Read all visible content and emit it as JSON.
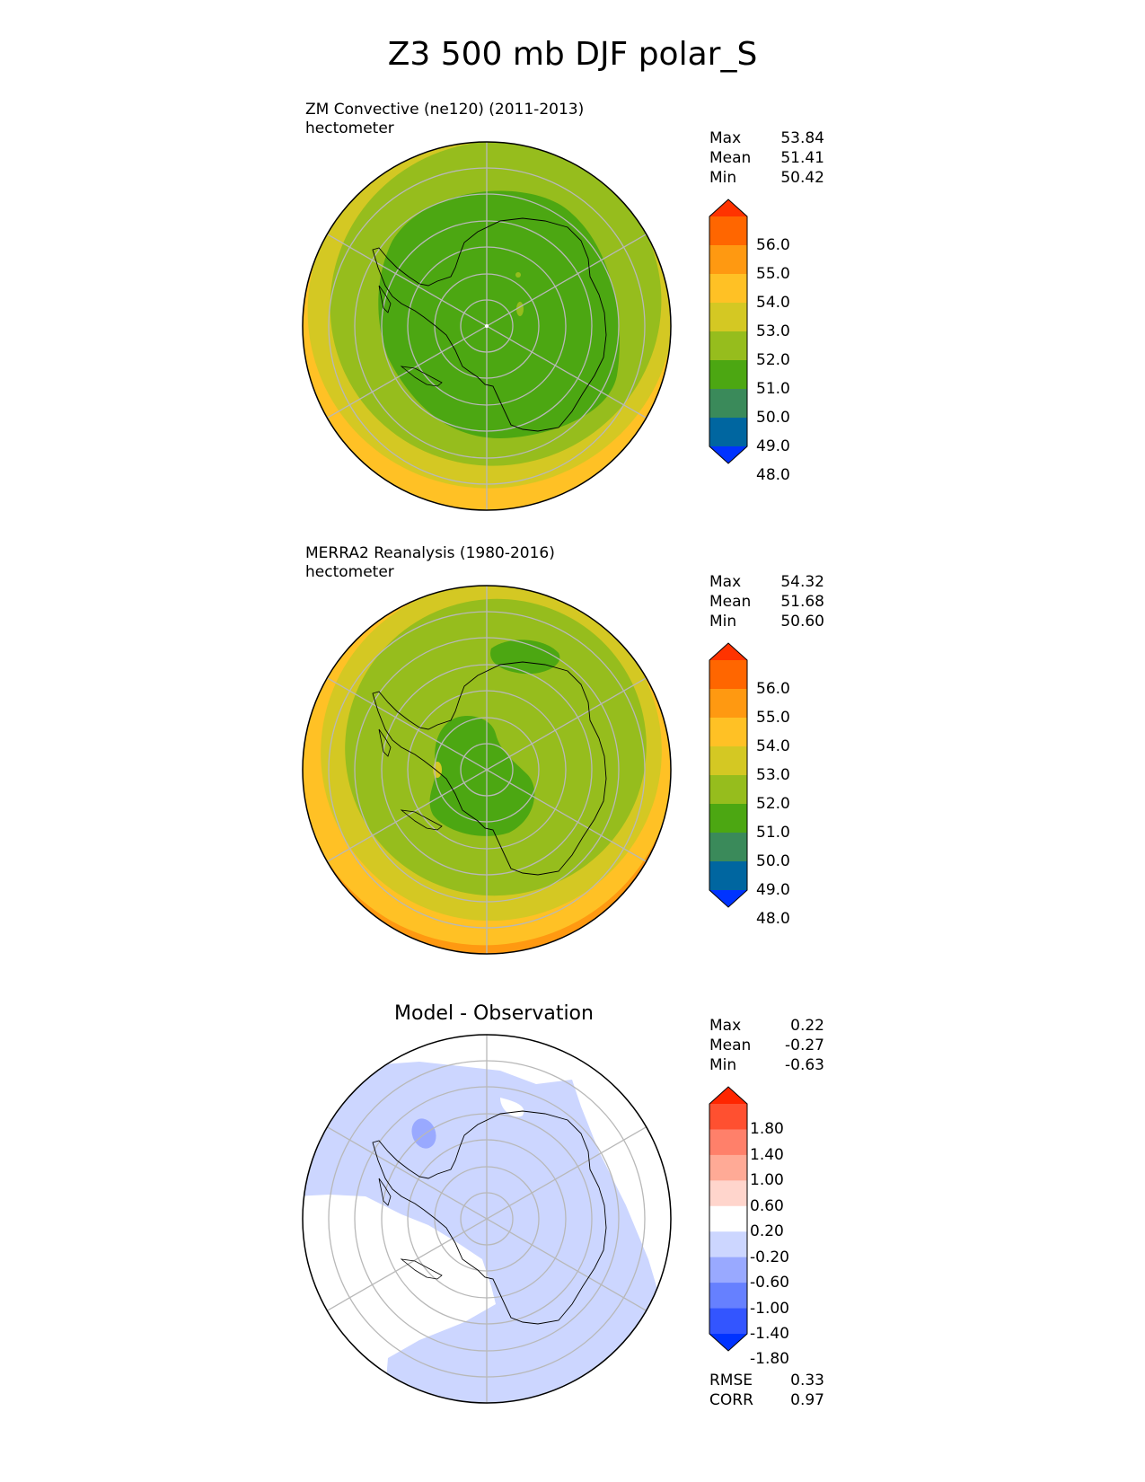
{
  "title": "Z3 500 mb DJF polar_S",
  "panels": [
    {
      "id": "test",
      "title_line1": "ZM Convective (ne120) (2011-2013)",
      "title_line2": "hectometer",
      "stats": [
        {
          "label": "Max",
          "value": "53.84"
        },
        {
          "label": "Mean",
          "value": "51.41"
        },
        {
          "label": "Min",
          "value": "50.42"
        }
      ]
    },
    {
      "id": "ref",
      "title_line1": "MERRA2 Reanalysis (1980-2016)",
      "title_line2": "hectometer",
      "stats": [
        {
          "label": "Max",
          "value": "54.32"
        },
        {
          "label": "Mean",
          "value": "51.68"
        },
        {
          "label": "Min",
          "value": "50.60"
        }
      ]
    },
    {
      "id": "diff",
      "title_center": "Model - Observation",
      "stats": [
        {
          "label": "Max",
          "value": "0.22"
        },
        {
          "label": "Mean",
          "value": "-0.27"
        },
        {
          "label": "Min",
          "value": "-0.63"
        }
      ],
      "metrics": [
        {
          "label": "RMSE",
          "value": "0.33"
        },
        {
          "label": "CORR",
          "value": "0.97"
        }
      ]
    }
  ],
  "colorbar_main": {
    "levels": [
      "56.0",
      "55.0",
      "54.0",
      "53.0",
      "52.0",
      "51.0",
      "50.0",
      "49.0",
      "48.0"
    ],
    "colors_top_to_bottom": [
      "#ff3300",
      "#ff6600",
      "#ff9911",
      "#ffc125",
      "#d4c823",
      "#96bd1d",
      "#4ca712",
      "#3a8a5a",
      "#0066a0",
      "#0033ff"
    ]
  },
  "colorbar_diff": {
    "levels": [
      "1.80",
      "1.40",
      "1.00",
      "0.60",
      "0.20",
      "-0.20",
      "-0.60",
      "-1.00",
      "-1.40",
      "-1.80"
    ],
    "colors_top_to_bottom": [
      "#ff2600",
      "#ff5030",
      "#ff806a",
      "#ffaa96",
      "#ffd5cc",
      "#ffffff",
      "#ccd6ff",
      "#99a9ff",
      "#6680ff",
      "#3355ff",
      "#0033ff"
    ]
  },
  "chart_data": [
    {
      "type": "heatmap",
      "title": "ZM Convective (ne120) (2011-2013)",
      "units": "hectometer",
      "projection": "south polar stereographic",
      "levels": [
        48,
        49,
        50,
        51,
        52,
        53,
        54,
        55,
        56
      ],
      "max": 53.84,
      "mean": 51.41,
      "min": 50.42
    },
    {
      "type": "heatmap",
      "title": "MERRA2 Reanalysis (1980-2016)",
      "units": "hectometer",
      "projection": "south polar stereographic",
      "levels": [
        48,
        49,
        50,
        51,
        52,
        53,
        54,
        55,
        56
      ],
      "max": 54.32,
      "mean": 51.68,
      "min": 50.6
    },
    {
      "type": "heatmap",
      "title": "Model - Observation",
      "projection": "south polar stereographic",
      "levels": [
        -1.8,
        -1.4,
        -1.0,
        -0.6,
        -0.2,
        0.2,
        0.6,
        1.0,
        1.4,
        1.8
      ],
      "max": 0.22,
      "mean": -0.27,
      "min": -0.63,
      "rmse": 0.33,
      "corr": 0.97
    }
  ]
}
